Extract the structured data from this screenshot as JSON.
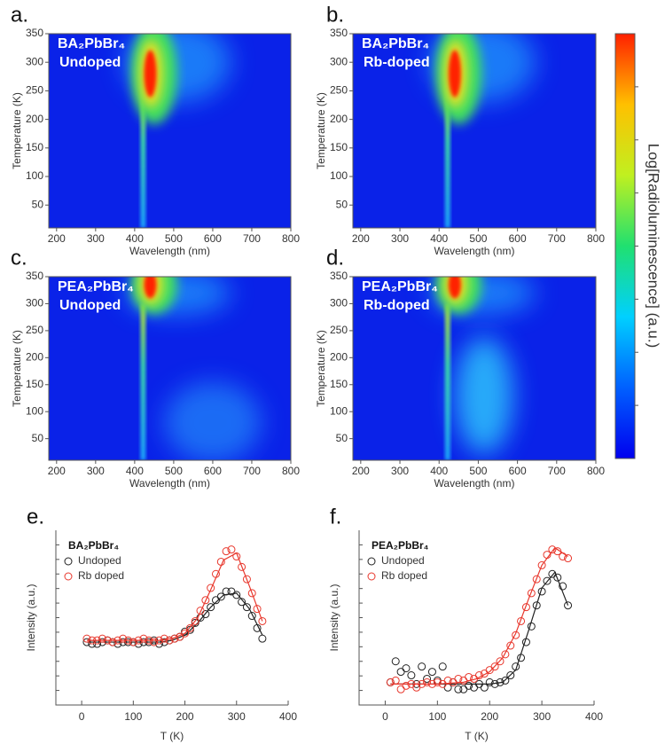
{
  "chart_data": [
    {
      "type": "heatmap",
      "panel": "a.",
      "title": "BA₂PbBr₄",
      "subtitle": "Undoped",
      "xlabel": "Wavelength (nm)",
      "ylabel": "Temperature (K)",
      "xlim": [
        180,
        800
      ],
      "xticks": [
        200,
        300,
        400,
        500,
        600,
        700,
        800
      ],
      "ylim": [
        10,
        350
      ],
      "yticks": [
        50,
        100,
        150,
        200,
        250,
        300,
        350
      ]
    },
    {
      "type": "heatmap",
      "panel": "b.",
      "title": "BA₂PbBr₄",
      "subtitle": "Rb-doped",
      "xlabel": "Wavelength (nm)",
      "ylabel": "Temperature (K)",
      "xlim": [
        180,
        800
      ],
      "xticks": [
        200,
        300,
        400,
        500,
        600,
        700,
        800
      ],
      "ylim": [
        10,
        350
      ],
      "yticks": [
        50,
        100,
        150,
        200,
        250,
        300,
        350
      ]
    },
    {
      "type": "heatmap",
      "panel": "c.",
      "title": "PEA₂PbBr₄",
      "subtitle": "Undoped",
      "xlabel": "Wavelength (nm)",
      "ylabel": "Temperature (K)",
      "xlim": [
        180,
        800
      ],
      "xticks": [
        200,
        300,
        400,
        500,
        600,
        700,
        800
      ],
      "ylim": [
        10,
        350
      ],
      "yticks": [
        50,
        100,
        150,
        200,
        250,
        300,
        350
      ]
    },
    {
      "type": "heatmap",
      "panel": "d.",
      "title": "PEA₂PbBr₄",
      "subtitle": "Rb-doped",
      "xlabel": "Wavelength (nm)",
      "ylabel": "Temperature (K)",
      "xlim": [
        180,
        800
      ],
      "xticks": [
        200,
        300,
        400,
        500,
        600,
        700,
        800
      ],
      "ylim": [
        10,
        350
      ],
      "yticks": [
        50,
        100,
        150,
        200,
        250,
        300,
        350
      ]
    },
    {
      "type": "scatter",
      "panel": "e.",
      "title": "BA₂PbBr₄",
      "xlabel": "T (K)",
      "ylabel": "Intensity (a.u.)",
      "xlim": [
        -50,
        400
      ],
      "xticks": [
        0,
        100,
        200,
        300,
        400
      ],
      "ylim": [
        0,
        1
      ],
      "legend": "upper left",
      "x": [
        10,
        20,
        30,
        40,
        50,
        60,
        70,
        80,
        90,
        100,
        110,
        120,
        130,
        140,
        150,
        160,
        170,
        180,
        190,
        200,
        210,
        220,
        230,
        240,
        250,
        260,
        270,
        280,
        290,
        300,
        310,
        320,
        330,
        340,
        350
      ],
      "fit_x": [
        10,
        50,
        100,
        150,
        175,
        200,
        225,
        250,
        275,
        300,
        325,
        350
      ],
      "series": [
        {
          "name": "Undoped",
          "color": "#222222",
          "values": [
            0.36,
            0.35,
            0.35,
            0.36,
            0.37,
            0.36,
            0.35,
            0.36,
            0.36,
            0.36,
            0.35,
            0.36,
            0.36,
            0.37,
            0.35,
            0.36,
            0.37,
            0.38,
            0.39,
            0.42,
            0.43,
            0.47,
            0.5,
            0.52,
            0.56,
            0.6,
            0.62,
            0.65,
            0.65,
            0.63,
            0.59,
            0.56,
            0.51,
            0.44,
            0.38
          ],
          "fit": [
            0.36,
            0.36,
            0.36,
            0.36,
            0.37,
            0.4,
            0.47,
            0.56,
            0.63,
            0.64,
            0.55,
            0.4
          ]
        },
        {
          "name": "Rb doped",
          "color": "#e8372c",
          "values": [
            0.38,
            0.37,
            0.37,
            0.38,
            0.37,
            0.36,
            0.37,
            0.38,
            0.37,
            0.36,
            0.37,
            0.38,
            0.37,
            0.36,
            0.37,
            0.38,
            0.37,
            0.38,
            0.39,
            0.41,
            0.44,
            0.48,
            0.54,
            0.6,
            0.67,
            0.75,
            0.82,
            0.88,
            0.89,
            0.85,
            0.79,
            0.72,
            0.64,
            0.55,
            0.48
          ],
          "fit": [
            0.37,
            0.37,
            0.37,
            0.37,
            0.38,
            0.41,
            0.5,
            0.66,
            0.83,
            0.87,
            0.68,
            0.48
          ]
        }
      ]
    },
    {
      "type": "scatter",
      "panel": "f.",
      "title": "PEA₂PbBr₄",
      "xlabel": "T (K)",
      "ylabel": "Intensity (a.u.)",
      "xlim": [
        -50,
        400
      ],
      "xticks": [
        0,
        100,
        200,
        300,
        400
      ],
      "ylim": [
        0,
        1
      ],
      "legend": "upper left",
      "x": [
        10,
        20,
        30,
        40,
        50,
        60,
        70,
        80,
        90,
        100,
        110,
        120,
        130,
        140,
        150,
        160,
        170,
        180,
        190,
        200,
        210,
        220,
        230,
        240,
        250,
        260,
        270,
        280,
        290,
        300,
        310,
        320,
        330,
        340,
        350
      ],
      "fit_x": [
        10,
        50,
        100,
        150,
        175,
        200,
        225,
        250,
        275,
        300,
        325,
        350
      ],
      "series": [
        {
          "name": "Undoped",
          "color": "#222222",
          "values": [
            0.13,
            0.25,
            0.19,
            0.21,
            0.17,
            0.12,
            0.22,
            0.15,
            0.19,
            0.14,
            0.22,
            0.1,
            0.13,
            0.09,
            0.09,
            0.11,
            0.1,
            0.12,
            0.1,
            0.13,
            0.12,
            0.13,
            0.14,
            0.17,
            0.22,
            0.27,
            0.36,
            0.45,
            0.57,
            0.65,
            0.71,
            0.75,
            0.73,
            0.68,
            0.57
          ],
          "fit": [
            0.12,
            0.12,
            0.12,
            0.12,
            0.12,
            0.12,
            0.13,
            0.2,
            0.43,
            0.67,
            0.76,
            0.57
          ]
        },
        {
          "name": "Rb doped",
          "color": "#e8372c",
          "values": [
            0.13,
            0.14,
            0.09,
            0.11,
            0.12,
            0.1,
            0.12,
            0.13,
            0.12,
            0.13,
            0.12,
            0.14,
            0.13,
            0.15,
            0.14,
            0.16,
            0.15,
            0.17,
            0.18,
            0.2,
            0.22,
            0.25,
            0.29,
            0.34,
            0.4,
            0.48,
            0.56,
            0.64,
            0.72,
            0.8,
            0.86,
            0.89,
            0.88,
            0.85,
            0.84
          ],
          "fit": [
            0.12,
            0.12,
            0.12,
            0.13,
            0.15,
            0.19,
            0.27,
            0.41,
            0.61,
            0.8,
            0.9,
            0.85
          ]
        }
      ]
    }
  ],
  "colorbar": {
    "label": "Log[Radioluminescence] (a.u.)",
    "colors": [
      "#0000ee",
      "#0060ff",
      "#00d0ff",
      "#20e070",
      "#c0f020",
      "#ffc000",
      "#ff2000"
    ]
  }
}
